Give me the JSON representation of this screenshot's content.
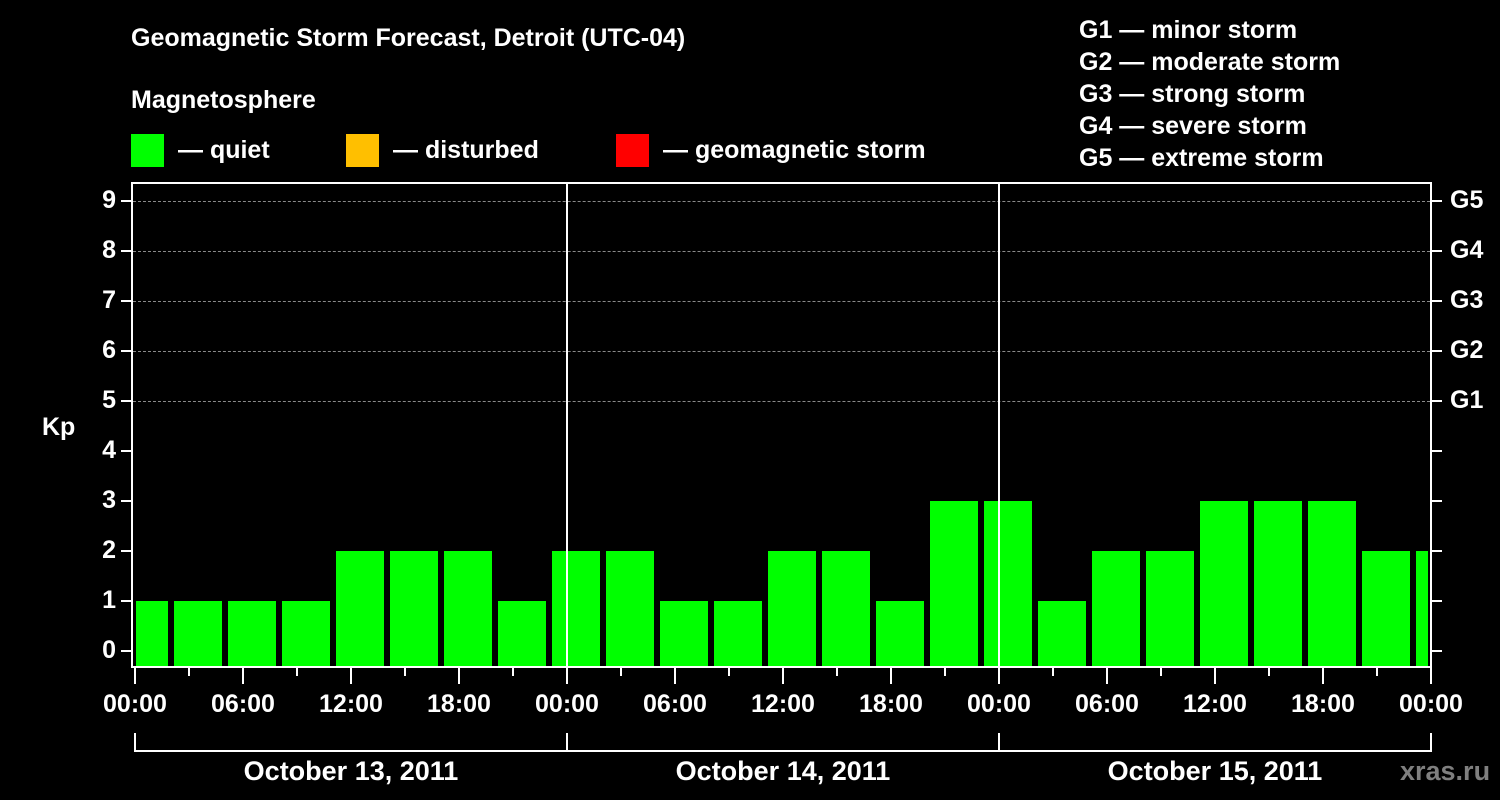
{
  "header": {
    "title": "Geomagnetic Storm Forecast, Detroit (UTC-04)",
    "subtitle": "Magnetosphere"
  },
  "legend": [
    {
      "label": "— quiet",
      "color": "#00ff00"
    },
    {
      "label": "— disturbed",
      "color": "#ffbf00"
    },
    {
      "label": "— geomagnetic storm",
      "color": "#ff0000"
    }
  ],
  "storm_scale": [
    "G1 — minor storm",
    "G2 — moderate storm",
    "G3 — strong storm",
    "G4 — severe storm",
    "G5 — extreme storm"
  ],
  "axes": {
    "ylabel": "Kp",
    "yticks": [
      "0",
      "1",
      "2",
      "3",
      "4",
      "5",
      "6",
      "7",
      "8",
      "9"
    ],
    "right_ticks": [
      {
        "kp": 5,
        "label": "G1"
      },
      {
        "kp": 6,
        "label": "G2"
      },
      {
        "kp": 7,
        "label": "G3"
      },
      {
        "kp": 8,
        "label": "G4"
      },
      {
        "kp": 9,
        "label": "G5"
      }
    ],
    "xticks": [
      "00:00",
      "06:00",
      "12:00",
      "18:00",
      "00:00",
      "06:00",
      "12:00",
      "18:00",
      "00:00",
      "06:00",
      "12:00",
      "18:00",
      "00:00"
    ],
    "dates": [
      "October 13, 2011",
      "October 14, 2011",
      "October 15, 2011"
    ]
  },
  "watermark": "xras.ru",
  "chart_data": {
    "type": "bar",
    "title": "Geomagnetic Storm Forecast, Detroit (UTC-04)",
    "subtitle": "Magnetosphere",
    "xlabel": "",
    "ylabel": "Kp",
    "ylim": [
      0,
      9
    ],
    "grid": true,
    "legend_position": "top",
    "categories": [
      "Oct 13 00:00",
      "Oct 13 02:00",
      "Oct 13 05:00",
      "Oct 13 08:00",
      "Oct 13 11:00",
      "Oct 13 14:00",
      "Oct 13 17:00",
      "Oct 13 20:00",
      "Oct 13 23:00",
      "Oct 14 02:00",
      "Oct 14 05:00",
      "Oct 14 08:00",
      "Oct 14 11:00",
      "Oct 14 14:00",
      "Oct 14 17:00",
      "Oct 14 20:00",
      "Oct 14 23:00",
      "Oct 15 02:00",
      "Oct 15 05:00",
      "Oct 15 08:00",
      "Oct 15 11:00",
      "Oct 15 14:00",
      "Oct 15 17:00",
      "Oct 15 20:00",
      "Oct 15 23:00"
    ],
    "values": [
      1,
      1,
      1,
      1,
      2,
      2,
      2,
      1,
      2,
      2,
      1,
      1,
      2,
      2,
      1,
      3,
      3,
      1,
      2,
      2,
      3,
      3,
      3,
      2,
      2
    ],
    "status": [
      "quiet",
      "quiet",
      "quiet",
      "quiet",
      "quiet",
      "quiet",
      "quiet",
      "quiet",
      "quiet",
      "quiet",
      "quiet",
      "quiet",
      "quiet",
      "quiet",
      "quiet",
      "quiet",
      "quiet",
      "quiet",
      "quiet",
      "quiet",
      "quiet",
      "quiet",
      "quiet",
      "quiet",
      "quiet"
    ],
    "legend": [
      "quiet",
      "disturbed",
      "geomagnetic storm"
    ],
    "right_axis": {
      "5": "G1",
      "6": "G2",
      "7": "G3",
      "8": "G4",
      "9": "G5"
    }
  }
}
